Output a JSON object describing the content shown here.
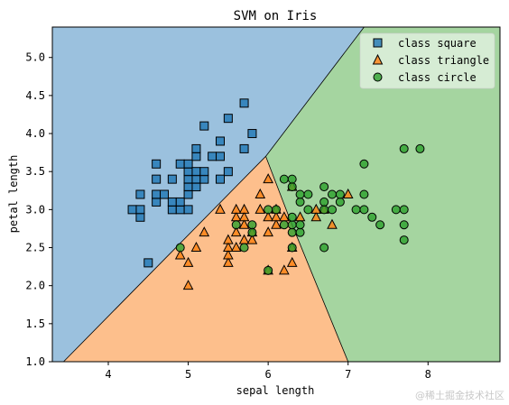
{
  "chart_data": {
    "type": "scatter",
    "title": "SVM on Iris",
    "xlabel": "sepal length",
    "ylabel": "petal length",
    "xlim": [
      3.3,
      8.9
    ],
    "ylim": [
      1.0,
      5.4
    ],
    "x_ticks": [
      4,
      5,
      6,
      7,
      8
    ],
    "y_ticks": [
      1.0,
      1.5,
      2.0,
      2.5,
      3.0,
      3.5,
      4.0,
      4.5,
      5.0
    ],
    "grid": false,
    "legend_position": "top-right",
    "decision_regions": [
      {
        "class": "class square",
        "color": "#9bc1de",
        "polygon": [
          [
            3.3,
            1.0
          ],
          [
            3.3,
            5.4
          ],
          [
            7.2,
            5.4
          ],
          [
            5.97,
            3.7
          ],
          [
            3.44,
            1.0
          ]
        ]
      },
      {
        "class": "class triangle",
        "color": "#fdbf8c",
        "polygon": [
          [
            3.44,
            1.0
          ],
          [
            5.97,
            3.7
          ],
          [
            6.28,
            2.85
          ],
          [
            7.0,
            1.0
          ]
        ]
      },
      {
        "class": "class circle",
        "color": "#a5d5a0",
        "polygon": [
          [
            7.0,
            1.0
          ],
          [
            6.28,
            2.85
          ],
          [
            5.97,
            3.7
          ],
          [
            7.2,
            5.4
          ],
          [
            8.9,
            5.4
          ],
          [
            8.9,
            1.0
          ]
        ]
      }
    ],
    "series": [
      {
        "name": "class square",
        "marker": "square",
        "color": "#1f77b4",
        "points": [
          [
            4.3,
            3.0
          ],
          [
            4.4,
            2.9
          ],
          [
            4.4,
            3.0
          ],
          [
            4.4,
            3.2
          ],
          [
            4.5,
            2.3
          ],
          [
            4.6,
            3.1
          ],
          [
            4.6,
            3.2
          ],
          [
            4.6,
            3.4
          ],
          [
            4.6,
            3.6
          ],
          [
            4.7,
            3.2
          ],
          [
            4.8,
            3.0
          ],
          [
            4.8,
            3.1
          ],
          [
            4.8,
            3.4
          ],
          [
            4.9,
            3.0
          ],
          [
            4.9,
            3.1
          ],
          [
            4.9,
            3.6
          ],
          [
            5.0,
            3.0
          ],
          [
            5.0,
            3.2
          ],
          [
            5.0,
            3.3
          ],
          [
            5.0,
            3.4
          ],
          [
            5.0,
            3.5
          ],
          [
            5.0,
            3.6
          ],
          [
            5.1,
            3.3
          ],
          [
            5.1,
            3.4
          ],
          [
            5.1,
            3.5
          ],
          [
            5.1,
            3.7
          ],
          [
            5.1,
            3.8
          ],
          [
            5.2,
            3.4
          ],
          [
            5.2,
            3.5
          ],
          [
            5.2,
            4.1
          ],
          [
            5.3,
            3.7
          ],
          [
            5.4,
            3.4
          ],
          [
            5.4,
            3.7
          ],
          [
            5.4,
            3.9
          ],
          [
            5.5,
            3.5
          ],
          [
            5.5,
            4.2
          ],
          [
            5.7,
            3.8
          ],
          [
            5.7,
            4.4
          ],
          [
            5.8,
            4.0
          ]
        ]
      },
      {
        "name": "class triangle",
        "marker": "triangle",
        "color": "#ff7f0e",
        "points": [
          [
            4.9,
            2.4
          ],
          [
            5.0,
            2.0
          ],
          [
            5.0,
            2.3
          ],
          [
            5.1,
            2.5
          ],
          [
            5.2,
            2.7
          ],
          [
            5.4,
            3.0
          ],
          [
            5.5,
            2.3
          ],
          [
            5.5,
            2.4
          ],
          [
            5.5,
            2.5
          ],
          [
            5.5,
            2.6
          ],
          [
            5.6,
            2.5
          ],
          [
            5.6,
            2.7
          ],
          [
            5.6,
            2.9
          ],
          [
            5.6,
            3.0
          ],
          [
            5.7,
            2.6
          ],
          [
            5.7,
            2.8
          ],
          [
            5.7,
            2.9
          ],
          [
            5.7,
            3.0
          ],
          [
            5.8,
            2.6
          ],
          [
            5.8,
            2.7
          ],
          [
            5.9,
            3.0
          ],
          [
            5.9,
            3.2
          ],
          [
            6.0,
            2.2
          ],
          [
            6.0,
            2.7
          ],
          [
            6.0,
            2.9
          ],
          [
            6.0,
            3.4
          ],
          [
            6.1,
            2.8
          ],
          [
            6.1,
            2.9
          ],
          [
            6.1,
            3.0
          ],
          [
            6.2,
            2.2
          ],
          [
            6.2,
            2.9
          ],
          [
            6.3,
            2.3
          ],
          [
            6.3,
            2.5
          ],
          [
            6.3,
            3.3
          ],
          [
            6.4,
            2.9
          ],
          [
            6.6,
            2.9
          ],
          [
            6.6,
            3.0
          ],
          [
            6.7,
            3.0
          ],
          [
            6.8,
            2.8
          ],
          [
            7.0,
            3.2
          ]
        ]
      },
      {
        "name": "class circle",
        "marker": "circle",
        "color": "#2ca02c",
        "points": [
          [
            4.9,
            2.5
          ],
          [
            5.6,
            2.8
          ],
          [
            5.7,
            2.5
          ],
          [
            5.8,
            2.7
          ],
          [
            5.8,
            2.8
          ],
          [
            6.0,
            2.2
          ],
          [
            6.0,
            3.0
          ],
          [
            6.1,
            3.0
          ],
          [
            6.2,
            2.8
          ],
          [
            6.2,
            3.4
          ],
          [
            6.3,
            2.5
          ],
          [
            6.3,
            2.7
          ],
          [
            6.3,
            2.8
          ],
          [
            6.3,
            2.9
          ],
          [
            6.3,
            3.3
          ],
          [
            6.3,
            3.4
          ],
          [
            6.4,
            2.7
          ],
          [
            6.4,
            2.8
          ],
          [
            6.4,
            3.1
          ],
          [
            6.4,
            3.2
          ],
          [
            6.5,
            3.0
          ],
          [
            6.5,
            3.2
          ],
          [
            6.7,
            2.5
          ],
          [
            6.7,
            3.0
          ],
          [
            6.7,
            3.1
          ],
          [
            6.7,
            3.3
          ],
          [
            6.8,
            3.0
          ],
          [
            6.8,
            3.2
          ],
          [
            6.9,
            3.1
          ],
          [
            6.9,
            3.2
          ],
          [
            7.1,
            3.0
          ],
          [
            7.2,
            3.0
          ],
          [
            7.2,
            3.2
          ],
          [
            7.2,
            3.6
          ],
          [
            7.3,
            2.9
          ],
          [
            7.4,
            2.8
          ],
          [
            7.6,
            3.0
          ],
          [
            7.7,
            2.6
          ],
          [
            7.7,
            2.8
          ],
          [
            7.7,
            3.0
          ],
          [
            7.7,
            3.8
          ],
          [
            7.9,
            3.8
          ]
        ]
      }
    ]
  },
  "watermark": "@稀土掘金技术社区"
}
